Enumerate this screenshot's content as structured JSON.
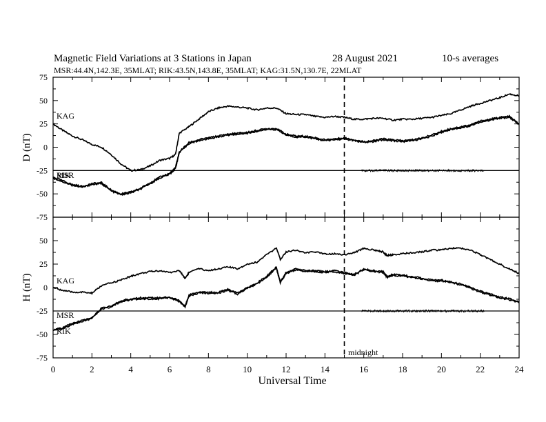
{
  "title": "Magnetic Field Variations at 3 Stations in Japan",
  "date": "28  August   2021",
  "averaging": "10-s averages",
  "stations_line": "MSR:44.4N,142.3E, 35MLAT;  RIK:43.5N,143.8E, 35MLAT;  KAG:31.5N,130.7E, 22MLAT",
  "xlabel": "Universal Time",
  "midnight_label": "midnight",
  "chart_data": [
    {
      "type": "line",
      "panel": "D",
      "ylabel": "D (nT)",
      "xlim": [
        0,
        24
      ],
      "ylim": [
        -75,
        75
      ],
      "yticks": [
        -75,
        -50,
        -25,
        0,
        25,
        50,
        75
      ],
      "xticks": [
        0,
        2,
        4,
        6,
        8,
        10,
        12,
        14,
        16,
        18,
        20,
        22,
        24
      ],
      "midnight_ut": 15,
      "series": [
        {
          "name": "KAG",
          "x": [
            0,
            0.5,
            1,
            1.5,
            2,
            2.5,
            3,
            3.5,
            4,
            4.5,
            5,
            5.5,
            6,
            6.3,
            6.5,
            7,
            7.5,
            8,
            8.5,
            9,
            9.5,
            10,
            10.5,
            11,
            11.5,
            12,
            12.5,
            13,
            13.5,
            14,
            14.5,
            15,
            15.5,
            16,
            16.5,
            17,
            17.5,
            18,
            18.5,
            19,
            19.5,
            20,
            20.5,
            21,
            21.5,
            22,
            22.5,
            23,
            23.5,
            24
          ],
          "y": [
            25,
            18,
            12,
            8,
            3,
            0,
            -8,
            -18,
            -25,
            -24,
            -20,
            -14,
            -12,
            -8,
            15,
            22,
            30,
            38,
            42,
            44,
            43,
            42,
            40,
            42,
            42,
            36,
            35,
            35,
            33,
            32,
            33,
            32,
            30,
            30,
            31,
            31,
            29,
            30,
            30,
            31,
            32,
            34,
            36,
            40,
            44,
            47,
            50,
            53,
            57,
            55
          ]
        },
        {
          "name": "MSR",
          "x": [
            0,
            0.5,
            1,
            1.5,
            2,
            2.5,
            3,
            3.5,
            4,
            4.5,
            5,
            5.5,
            6,
            6.3,
            6.5,
            7,
            7.5,
            8,
            8.5,
            9,
            9.5,
            10,
            10.5,
            11,
            11.5,
            12,
            12.5,
            13,
            13.5,
            14,
            14.5,
            15,
            15.5,
            16,
            16.5,
            17,
            17.5,
            18,
            18.5,
            19,
            19.5,
            20,
            20.5,
            21,
            21.5,
            22,
            22.5,
            23,
            23.5,
            24
          ],
          "y": [
            -32,
            -36,
            -40,
            -42,
            -39,
            -38,
            -46,
            -50,
            -48,
            -44,
            -38,
            -32,
            -28,
            -22,
            -5,
            5,
            8,
            10,
            12,
            14,
            15,
            16,
            18,
            20,
            20,
            14,
            12,
            12,
            10,
            8,
            9,
            10,
            8,
            6,
            7,
            9,
            8,
            7,
            8,
            10,
            13,
            17,
            20,
            22,
            24,
            28,
            30,
            32,
            33,
            25
          ]
        },
        {
          "name": "RIK",
          "x": [
            0,
            0.5,
            1,
            1.5,
            2,
            2.5,
            3,
            3.5,
            4,
            4.5,
            5,
            5.5,
            6,
            6.3,
            6.5,
            7,
            7.5,
            8,
            8.5,
            9,
            9.5,
            10,
            10.5,
            11,
            11.5,
            12,
            12.5,
            13,
            13.5,
            14,
            14.5,
            15,
            15.5,
            16,
            16.5,
            17,
            17.5,
            18,
            18.5,
            19,
            19.5,
            20,
            20.5,
            21,
            21.5,
            22,
            22.5,
            23,
            23.5,
            24
          ],
          "y": [
            -33,
            -37,
            -41,
            -43,
            -40,
            -39,
            -47,
            -51,
            -49,
            -45,
            -39,
            -33,
            -29,
            -23,
            -6,
            4,
            7,
            9,
            11,
            13,
            14,
            15,
            17,
            19,
            19,
            13,
            11,
            11,
            9,
            7,
            8,
            9,
            7,
            5,
            6,
            8,
            7,
            6,
            7,
            9,
            12,
            16,
            19,
            21,
            23,
            27,
            29,
            31,
            32,
            24
          ]
        }
      ]
    },
    {
      "type": "line",
      "panel": "H",
      "ylabel": "H (nT)",
      "xlim": [
        0,
        24
      ],
      "ylim": [
        -75,
        75
      ],
      "yticks": [
        -75,
        -50,
        -25,
        0,
        25,
        50,
        75
      ],
      "xticks": [
        0,
        2,
        4,
        6,
        8,
        10,
        12,
        14,
        16,
        18,
        20,
        22,
        24
      ],
      "midnight_ut": 15,
      "series": [
        {
          "name": "KAG",
          "x": [
            0,
            0.5,
            1,
            1.5,
            2,
            2.5,
            3,
            3.5,
            4,
            4.5,
            5,
            5.5,
            6,
            6.5,
            6.8,
            7,
            7.5,
            8,
            8.5,
            9,
            9.5,
            10,
            10.5,
            11,
            11.5,
            11.7,
            12,
            12.5,
            13,
            13.5,
            14,
            14.5,
            15,
            15.5,
            16,
            16.5,
            17,
            17.2,
            17.5,
            18,
            18.5,
            19,
            19.5,
            20,
            20.5,
            21,
            21.5,
            22,
            22.5,
            23,
            23.5,
            24
          ],
          "y": [
            0,
            -3,
            -5,
            -5,
            -6,
            2,
            5,
            8,
            12,
            15,
            17,
            18,
            16,
            18,
            10,
            16,
            20,
            18,
            20,
            22,
            20,
            25,
            27,
            35,
            42,
            30,
            38,
            40,
            37,
            38,
            36,
            36,
            35,
            37,
            42,
            40,
            38,
            34,
            35,
            36,
            37,
            38,
            40,
            40,
            42,
            42,
            40,
            35,
            30,
            25,
            20,
            15
          ]
        },
        {
          "name": "MSR",
          "x": [
            0,
            0.5,
            1,
            1.5,
            2,
            2.5,
            3,
            3.5,
            4,
            4.5,
            5,
            5.5,
            6,
            6.5,
            6.8,
            7,
            7.5,
            8,
            8.5,
            9,
            9.5,
            10,
            10.5,
            11,
            11.5,
            11.7,
            12,
            12.5,
            13,
            13.5,
            14,
            14.5,
            15,
            15.5,
            16,
            16.5,
            17,
            17.2,
            17.5,
            18,
            18.5,
            19,
            19.5,
            20,
            20.5,
            21,
            21.5,
            22,
            22.5,
            23,
            23.5,
            24
          ],
          "y": [
            -45,
            -43,
            -38,
            -35,
            -32,
            -22,
            -20,
            -14,
            -12,
            -11,
            -11,
            -11,
            -10,
            -14,
            -20,
            -8,
            -5,
            -5,
            -5,
            -2,
            -6,
            0,
            5,
            12,
            22,
            6,
            16,
            20,
            18,
            18,
            17,
            18,
            16,
            14,
            20,
            18,
            17,
            12,
            14,
            13,
            12,
            10,
            8,
            8,
            6,
            4,
            0,
            -4,
            -7,
            -10,
            -12,
            -15
          ]
        },
        {
          "name": "RIK",
          "x": [
            0,
            0.5,
            1,
            1.5,
            2,
            2.5,
            3,
            3.5,
            4,
            4.5,
            5,
            5.5,
            6,
            6.5,
            6.8,
            7,
            7.5,
            8,
            8.5,
            9,
            9.5,
            10,
            10.5,
            11,
            11.5,
            11.7,
            12,
            12.5,
            13,
            13.5,
            14,
            14.5,
            15,
            15.5,
            16,
            16.5,
            17,
            17.2,
            17.5,
            18,
            18.5,
            19,
            19.5,
            20,
            20.5,
            21,
            21.5,
            22,
            22.5,
            23,
            23.5,
            24
          ],
          "y": [
            -46,
            -44,
            -39,
            -36,
            -33,
            -23,
            -21,
            -15,
            -13,
            -12,
            -12,
            -12,
            -11,
            -15,
            -21,
            -9,
            -6,
            -6,
            -6,
            -3,
            -7,
            -1,
            4,
            11,
            21,
            5,
            15,
            19,
            17,
            17,
            16,
            17,
            15,
            13,
            19,
            17,
            16,
            11,
            13,
            12,
            11,
            9,
            7,
            7,
            5,
            3,
            -1,
            -5,
            -8,
            -11,
            -13,
            -16
          ]
        }
      ]
    }
  ]
}
